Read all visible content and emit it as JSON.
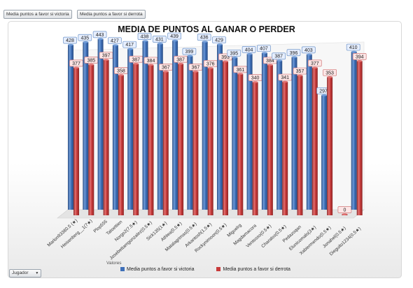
{
  "field_buttons": [
    "Media puntos a favor si victoria",
    "Media puntos a favor si derrota"
  ],
  "axis_field_button": "Jugador",
  "axis_field_arrow": "▼",
  "values_caption": "Valores",
  "colors": {
    "victoria": "#3e6fb8",
    "derrota": "#c83a3a"
  },
  "chart_data": {
    "type": "bar",
    "title": "MEDIA DE PUNTOS AL GANAR O PERDER",
    "categories": [
      "Marlon93380.5 (★)",
      "Heisenberg__1(7★)",
      "Plop555",
      "Tatoettien",
      "Norgo2(7.5★)",
      "Josebettamgonzalez(0.5★)",
      "Sick135(1★)",
      "Athlea(0.5★)",
      "Matalagrimas(0.5★)",
      "Arkantosh(1.5★)",
      "Rockynimoon(0.5★)",
      "Miguelrg",
      "Magdamacora",
      "Ventosso(0.5★)",
      "Charalos(0.5★)",
      "Pedazoqan",
      "Elunicomalo(3★)",
      "Xabiermendo(0.5★)",
      "Jonahel(0.5★)",
      "Dieguito1234(0.5★)"
    ],
    "series": [
      {
        "name": "Media puntos a favor si victoria",
        "values": [
          428,
          435,
          443,
          427,
          417,
          438,
          431,
          439,
          399,
          436,
          429,
          395,
          404,
          407,
          387,
          396,
          403,
          297,
          null,
          410
        ]
      },
      {
        "name": "Media puntos a favor si derrota",
        "values": [
          377,
          385,
          397,
          358,
          387,
          384,
          367,
          387,
          367,
          376,
          393,
          361,
          340,
          384,
          341,
          357,
          377,
          353,
          0,
          394
        ]
      }
    ],
    "ylim": [
      0,
      450
    ],
    "grid": false,
    "legend": "bottom"
  }
}
